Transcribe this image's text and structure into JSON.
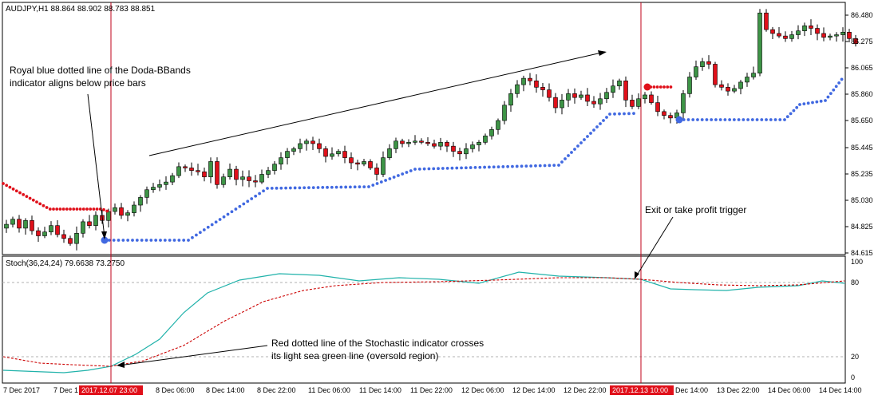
{
  "main_panel": {
    "symbol_info": "AUDJPY,H1  88.864 88.902 88.783 88.851",
    "y_ticks": [
      "86.480",
      "86.275",
      "86.065",
      "85.860",
      "85.650",
      "85.445",
      "85.235",
      "85.030",
      "84.825",
      "84.615"
    ],
    "annotations": {
      "royal_blue_note_1": "Royal blue dotted line of the Doda-BBands",
      "royal_blue_note_2": "indicator aligns below price bars",
      "exit_note": "Exit or take profit trigger"
    }
  },
  "sub_panel": {
    "info": "Stoch(36,24,24) 79.6638 73.2750",
    "y_ticks": [
      "100",
      "80",
      "20",
      "0"
    ],
    "annotations": {
      "cross_note_1": "Red dotted line of the Stochastic indicator crosses",
      "cross_note_2": "its light sea green line (oversold region)"
    }
  },
  "x_axis": {
    "labels": [
      "7 Dec 2017",
      "7 Dec 1",
      "8 Dec 06:00",
      "8 Dec 14:00",
      "8 Dec 22:00",
      "11 Dec 06:00",
      "11 Dec 14:00",
      "11 Dec 22:00",
      "12 Dec 06:00",
      "12 Dec 14:00",
      "12 Dec 22:00",
      "Dec 14:00",
      "13 Dec 22:00",
      "14 Dec 06:00",
      "14 Dec 14:00"
    ],
    "highlight_1": "2017.12.07 23:00",
    "highlight_2": "2017.12.13 10:00"
  },
  "colors": {
    "bull": "#3d9446",
    "bear": "#e0101a",
    "band_blue": "#4169e1",
    "band_red": "#e0101a",
    "stoch_main": "#20b2aa",
    "stoch_signal": "#cc0000",
    "vline": "#c0001a"
  },
  "chart_data": {
    "type": "candlestick",
    "ylim": [
      84.6,
      86.55
    ],
    "stoch_levels": [
      20,
      80
    ],
    "closes": [
      84.83,
      84.87,
      84.8,
      84.86,
      84.78,
      84.74,
      84.77,
      84.82,
      84.75,
      84.72,
      84.68,
      84.76,
      84.85,
      84.82,
      84.9,
      84.86,
      84.93,
      84.96,
      84.9,
      84.92,
      84.98,
      85.04,
      85.1,
      85.12,
      85.14,
      85.16,
      85.21,
      85.28,
      85.27,
      85.25,
      85.24,
      85.2,
      85.32,
      85.14,
      85.2,
      85.26,
      85.18,
      85.2,
      85.17,
      85.16,
      85.22,
      85.25,
      85.3,
      85.35,
      85.4,
      85.42,
      85.46,
      85.48,
      85.46,
      85.42,
      85.36,
      85.38,
      85.4,
      85.35,
      85.31,
      85.3,
      85.32,
      85.27,
      85.22,
      85.35,
      85.42,
      85.48,
      85.46,
      85.47,
      85.48,
      85.47,
      85.46,
      85.44,
      85.47,
      85.44,
      85.4,
      85.38,
      85.42,
      85.45,
      85.47,
      85.52,
      85.57,
      85.64,
      85.76,
      85.85,
      85.92,
      85.97,
      85.95,
      85.9,
      85.88,
      85.82,
      85.74,
      85.8,
      85.85,
      85.82,
      85.84,
      85.79,
      85.77,
      85.81,
      85.86,
      85.91,
      85.95,
      85.8,
      85.75,
      85.81,
      85.84,
      85.78,
      85.71,
      85.68,
      85.66,
      85.7,
      85.85,
      85.98,
      86.06,
      86.1,
      86.08,
      85.92,
      85.9,
      85.87,
      85.89,
      85.94,
      85.98,
      86.01,
      86.48,
      86.35,
      86.32,
      86.3,
      86.28,
      86.31,
      86.34,
      86.38,
      86.36,
      86.32,
      86.29,
      86.3,
      86.31,
      86.33,
      86.28,
      86.24
    ]
  }
}
